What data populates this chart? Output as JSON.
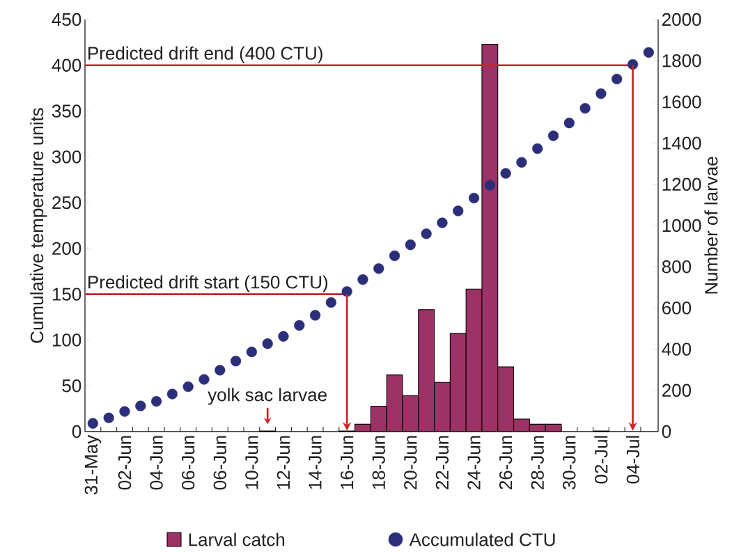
{
  "chart_data": {
    "type": "bar",
    "categories": [
      "31-May",
      null,
      "02-Jun",
      null,
      "04-Jun",
      null,
      "06-Jun",
      null,
      "06-Jun",
      null,
      "10-Jun",
      null,
      "12-Jun",
      null,
      "14-Jun",
      null,
      "16-Jun",
      null,
      "18-Jun",
      null,
      "20-Jun",
      null,
      "22-Jun",
      null,
      "24-Jun",
      null,
      "26-Jun",
      null,
      "28-Jun",
      null,
      "30-Jun",
      null,
      "02-Jul",
      null,
      "04-Jul",
      null
    ],
    "series": [
      {
        "name": "Larval catch",
        "type": "bar",
        "axis": "y2",
        "color": "#9b3366",
        "values": [
          0,
          0,
          0,
          0,
          0,
          0,
          0,
          0,
          0,
          0,
          0,
          3,
          0,
          0,
          0,
          0,
          3,
          36,
          123,
          275,
          175,
          592,
          239,
          476,
          692,
          1880,
          314,
          61,
          36,
          36,
          0,
          0,
          3,
          0,
          0,
          0
        ]
      },
      {
        "name": "Accumulated CTU",
        "type": "scatter",
        "color": "#2b2f7a",
        "values": [
          9,
          15,
          22,
          28,
          33,
          41,
          49,
          57,
          67,
          77,
          87,
          96,
          104,
          116,
          127,
          141,
          153,
          166,
          178,
          192,
          204,
          216,
          228,
          241,
          255,
          269,
          282,
          294,
          309,
          323,
          337,
          353,
          369,
          385,
          401,
          414
        ]
      }
    ],
    "ylabel": "Cumulative temperature units",
    "y2label": "Number of larvae",
    "ylim": [
      0,
      450
    ],
    "yticks": [
      0,
      50,
      100,
      150,
      200,
      250,
      300,
      350,
      400,
      450
    ],
    "y2lim": [
      0,
      2000
    ],
    "y2ticks": [
      0,
      200,
      400,
      600,
      800,
      1000,
      1200,
      1400,
      1600,
      1800,
      2000
    ],
    "ref_lines": [
      {
        "axis": "y",
        "value": 150,
        "label": "Predicted drift start (150 CTU)",
        "color": "#cc2229"
      },
      {
        "axis": "y",
        "value": 400,
        "label": "Predicted drift end (400 CTU)",
        "color": "#cc2229"
      }
    ],
    "annotations": [
      "yolk sac larvae"
    ],
    "marker": "circle",
    "legend": "bottom"
  }
}
